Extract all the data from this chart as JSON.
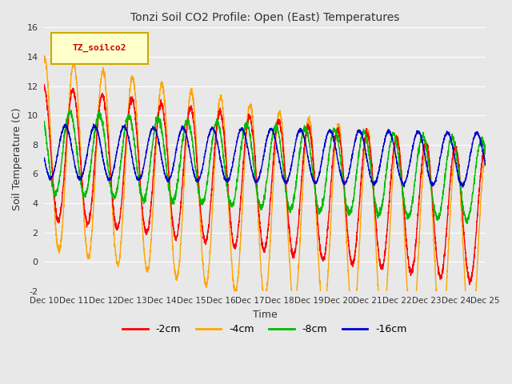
{
  "title": "Tonzi Soil CO2 Profile: Open (East) Temperatures",
  "xlabel": "Time",
  "ylabel": "Soil Temperature (C)",
  "legend_label": "TZ_soilco2",
  "series_labels": [
    "-2cm",
    "-4cm",
    "-8cm",
    "-16cm"
  ],
  "series_colors": [
    "#ff0000",
    "#ffa500",
    "#00bb00",
    "#0000cc"
  ],
  "ylim": [
    -2,
    16
  ],
  "xlim": [
    0,
    15
  ],
  "yticks": [
    -2,
    0,
    2,
    4,
    6,
    8,
    10,
    12,
    14,
    16
  ],
  "xticks": [
    0,
    1,
    2,
    3,
    4,
    5,
    6,
    7,
    8,
    9,
    10,
    11,
    12,
    13,
    14,
    15
  ],
  "xtick_labels": [
    "Dec 10",
    "Dec 11",
    "Dec 12",
    "Dec 13",
    "Dec 14",
    "Dec 15",
    "Dec 16",
    "Dec 17",
    "Dec 18",
    "Dec 19",
    "Dec 20",
    "Dec 21",
    "Dec 22",
    "Dec 23",
    "Dec 24",
    "Dec 25"
  ],
  "bg_color": "#e8e8e8",
  "plot_bg_light": "#f0f0f0",
  "plot_bg_dark": "#d8d8d8",
  "grid_color": "#ffffff",
  "title_color": "#333333",
  "n_points": 3000,
  "period": 1.0
}
